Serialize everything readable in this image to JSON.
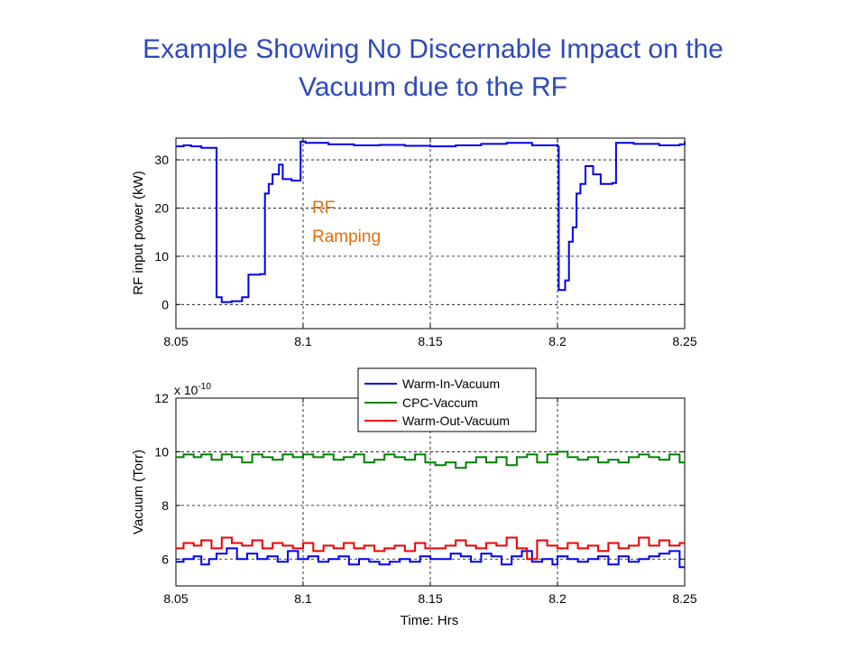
{
  "slide": {
    "title_line1": "Example Showing No Discernable Impact on the",
    "title_line2": "Vacuum due to the RF"
  },
  "colors": {
    "title": "#2e49b8",
    "annotation": "#e36c0a",
    "series_blue": "#0000ee",
    "series_green": "#008000",
    "series_red": "#ee0000"
  },
  "chart_data": [
    {
      "type": "line",
      "title": "",
      "xlabel": "",
      "ylabel": "RF input power (kW)",
      "xlim": [
        8.05,
        8.25
      ],
      "ylim": [
        -5,
        34.5
      ],
      "xticks": [
        8.05,
        8.1,
        8.15,
        8.2,
        8.25
      ],
      "xtick_labels": [
        "8.05",
        "8.1",
        "8.15",
        "8.2",
        "8.25"
      ],
      "yticks": [
        0,
        10,
        20,
        30
      ],
      "ytick_labels": [
        "0",
        "10",
        "20",
        "30"
      ],
      "grid": true,
      "annotation": {
        "line1": "RF",
        "line2": "Ramping"
      },
      "series": [
        {
          "color": "#0000ee",
          "x": [
            8.05,
            8.053,
            8.056,
            8.06,
            8.066,
            8.068,
            8.072,
            8.076,
            8.0785,
            8.083,
            8.085,
            8.0865,
            8.088,
            8.0905,
            8.092,
            8.0955,
            8.099,
            8.101,
            8.11,
            8.12,
            8.13,
            8.14,
            8.15,
            8.16,
            8.17,
            8.18,
            8.19,
            8.2,
            8.2005,
            8.203,
            8.2045,
            8.206,
            8.2075,
            8.209,
            8.211,
            8.214,
            8.217,
            8.2215,
            8.223,
            8.23,
            8.24,
            8.248,
            8.25
          ],
          "y": [
            32.8,
            33.0,
            32.8,
            32.5,
            1.5,
            0.5,
            0.7,
            1.5,
            6.2,
            6.3,
            23.0,
            25.0,
            27.0,
            29.0,
            26.0,
            25.7,
            33.8,
            33.5,
            33.2,
            33.0,
            33.1,
            32.9,
            32.8,
            33.0,
            33.3,
            33.5,
            33.0,
            32.8,
            3.0,
            5.0,
            13.0,
            16.0,
            23.0,
            25.0,
            28.7,
            27.0,
            25.0,
            25.2,
            33.5,
            33.3,
            33.0,
            33.2,
            33.8
          ]
        }
      ]
    },
    {
      "type": "line",
      "title": "",
      "xlabel": "Time: Hrs",
      "ylabel": "Vacuum (Torr)",
      "y_scale_label": "x 10",
      "y_scale_exponent": "-10",
      "xlim": [
        8.05,
        8.25
      ],
      "ylim": [
        5,
        12
      ],
      "xticks": [
        8.05,
        8.1,
        8.15,
        8.2,
        8.25
      ],
      "xtick_labels": [
        "8.05",
        "8.1",
        "8.15",
        "8.2",
        "8.25"
      ],
      "yticks": [
        6,
        8,
        10,
        12
      ],
      "ytick_labels": [
        "6",
        "8",
        "10",
        "12"
      ],
      "grid": true,
      "legend_position": "top-right",
      "series": [
        {
          "name": "Warm-In-Vacuum",
          "color": "#0000ee",
          "x": [
            8.05,
            8.053,
            8.057,
            8.06,
            8.063,
            8.066,
            8.07,
            8.074,
            8.078,
            8.082,
            8.086,
            8.09,
            8.094,
            8.098,
            8.102,
            8.106,
            8.11,
            8.114,
            8.118,
            8.122,
            8.126,
            8.13,
            8.134,
            8.138,
            8.142,
            8.146,
            8.15,
            8.154,
            8.158,
            8.162,
            8.166,
            8.17,
            8.174,
            8.178,
            8.182,
            8.186,
            8.19,
            8.194,
            8.198,
            8.2,
            8.204,
            8.208,
            8.212,
            8.216,
            8.22,
            8.224,
            8.228,
            8.232,
            8.236,
            8.24,
            8.244,
            8.248
          ],
          "y": [
            5.9,
            6.0,
            6.1,
            5.8,
            6.0,
            6.2,
            6.4,
            6.0,
            6.2,
            6.0,
            6.1,
            5.9,
            6.3,
            6.0,
            6.1,
            5.9,
            6.0,
            6.1,
            5.8,
            6.0,
            5.9,
            5.8,
            5.9,
            6.0,
            5.9,
            6.1,
            6.0,
            6.0,
            6.2,
            6.1,
            5.9,
            6.2,
            6.1,
            5.8,
            6.1,
            6.3,
            5.9,
            6.0,
            5.8,
            6.1,
            6.0,
            5.9,
            6.0,
            6.1,
            5.8,
            6.1,
            5.9,
            6.0,
            6.1,
            6.2,
            6.3,
            5.7
          ]
        },
        {
          "name": "CPC-Vaccum",
          "color": "#008000",
          "x": [
            8.05,
            8.053,
            8.057,
            8.06,
            8.064,
            8.068,
            8.072,
            8.076,
            8.08,
            8.084,
            8.088,
            8.092,
            8.096,
            8.1,
            8.104,
            8.108,
            8.112,
            8.116,
            8.12,
            8.124,
            8.128,
            8.132,
            8.136,
            8.14,
            8.144,
            8.148,
            8.152,
            8.156,
            8.16,
            8.164,
            8.168,
            8.172,
            8.176,
            8.18,
            8.184,
            8.188,
            8.192,
            8.196,
            8.2,
            8.204,
            8.208,
            8.212,
            8.216,
            8.22,
            8.224,
            8.228,
            8.232,
            8.236,
            8.24,
            8.244,
            8.248
          ],
          "y": [
            9.8,
            9.9,
            9.8,
            9.9,
            9.7,
            9.9,
            9.8,
            9.6,
            9.9,
            9.8,
            9.7,
            9.9,
            9.8,
            9.9,
            9.8,
            9.9,
            9.7,
            9.8,
            9.9,
            9.6,
            9.7,
            9.9,
            9.8,
            9.7,
            9.9,
            9.6,
            9.5,
            9.6,
            9.4,
            9.6,
            9.8,
            9.6,
            9.8,
            9.5,
            9.8,
            9.9,
            9.6,
            9.9,
            10.0,
            9.8,
            9.7,
            9.8,
            9.6,
            9.7,
            9.6,
            9.8,
            9.9,
            9.8,
            9.7,
            9.9,
            9.6
          ]
        },
        {
          "name": "Warm-Out-Vacuum",
          "color": "#ee0000",
          "x": [
            8.05,
            8.053,
            8.057,
            8.06,
            8.064,
            8.068,
            8.072,
            8.076,
            8.08,
            8.084,
            8.088,
            8.092,
            8.096,
            8.1,
            8.104,
            8.108,
            8.112,
            8.116,
            8.12,
            8.124,
            8.128,
            8.132,
            8.136,
            8.14,
            8.144,
            8.148,
            8.152,
            8.156,
            8.16,
            8.164,
            8.168,
            8.172,
            8.176,
            8.18,
            8.184,
            8.188,
            8.192,
            8.196,
            8.2,
            8.204,
            8.208,
            8.212,
            8.216,
            8.22,
            8.224,
            8.228,
            8.232,
            8.236,
            8.24,
            8.244,
            8.248
          ],
          "y": [
            6.4,
            6.6,
            6.5,
            6.7,
            6.4,
            6.8,
            6.6,
            6.5,
            6.7,
            6.4,
            6.6,
            6.5,
            6.4,
            6.6,
            6.3,
            6.5,
            6.4,
            6.6,
            6.4,
            6.5,
            6.3,
            6.4,
            6.5,
            6.3,
            6.6,
            6.4,
            6.4,
            6.5,
            6.7,
            6.5,
            6.4,
            6.6,
            6.5,
            6.8,
            6.4,
            6.0,
            6.7,
            6.5,
            6.4,
            6.6,
            6.4,
            6.5,
            6.3,
            6.6,
            6.4,
            6.5,
            6.8,
            6.5,
            6.7,
            6.5,
            6.6
          ]
        }
      ]
    }
  ]
}
